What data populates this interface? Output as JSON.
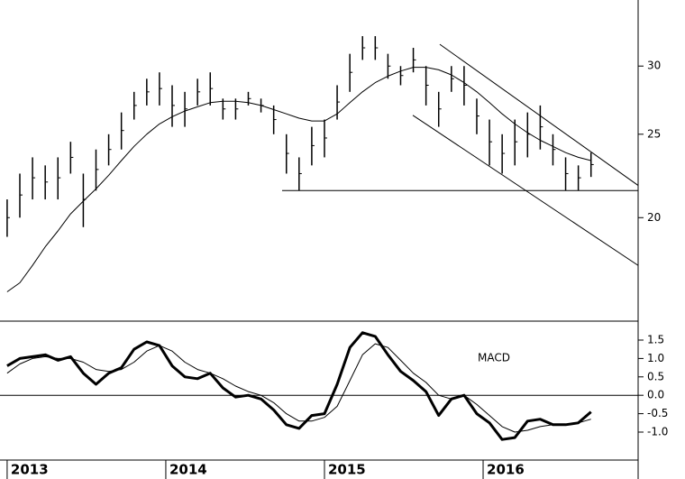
{
  "chart_data": [
    {
      "type": "hilo",
      "log_scale": true,
      "xlim": [
        2012.955,
        2016.977
      ],
      "ylim": [
        15.2,
        35.8
      ],
      "yticks": [
        20,
        25,
        30
      ],
      "x": [
        2013.0,
        2013.08,
        2013.16,
        2013.24,
        2013.32,
        2013.4,
        2013.48,
        2013.56,
        2013.64,
        2013.72,
        2013.8,
        2013.88,
        2013.96,
        2014.04,
        2014.12,
        2014.2,
        2014.28,
        2014.36,
        2014.44,
        2014.52,
        2014.6,
        2014.68,
        2014.76,
        2014.84,
        2014.92,
        2015.0,
        2015.08,
        2015.16,
        2015.24,
        2015.32,
        2015.4,
        2015.48,
        2015.56,
        2015.64,
        2015.72,
        2015.8,
        2015.88,
        2015.96,
        2016.04,
        2016.12,
        2016.2,
        2016.28,
        2016.36,
        2016.44,
        2016.52,
        2016.6,
        2016.68
      ],
      "high": [
        21,
        22.5,
        23.5,
        23,
        23.5,
        24.5,
        22.5,
        24,
        25,
        26.5,
        28,
        29,
        29.5,
        28.5,
        28,
        29,
        29.5,
        27.5,
        27.5,
        28,
        27.5,
        27,
        25,
        23.5,
        25.5,
        26,
        28.5,
        31,
        32.5,
        32.5,
        31,
        30,
        31.5,
        30,
        28,
        30,
        30,
        27.5,
        26,
        25,
        26,
        26.5,
        27,
        25,
        23.5,
        23,
        23.8
      ],
      "low": [
        19,
        20,
        21,
        21,
        21,
        22.5,
        19.5,
        21.5,
        23,
        24,
        26,
        27,
        27,
        25.5,
        25.5,
        27,
        27,
        26,
        26,
        27,
        26.5,
        25,
        22.5,
        21.5,
        23,
        23.5,
        26,
        28,
        30.5,
        30.5,
        29,
        28.5,
        29.5,
        27,
        25.5,
        28,
        27,
        25,
        23,
        22.5,
        23,
        23.5,
        24,
        23,
        21.5,
        21.5,
        22.3
      ],
      "color": "#000000",
      "moving_average": [
        16.4,
        16.8,
        17.6,
        18.5,
        19.3,
        20.2,
        20.9,
        21.6,
        22.4,
        23.3,
        24.2,
        25.0,
        25.7,
        26.2,
        26.6,
        26.9,
        27.2,
        27.3,
        27.3,
        27.2,
        27.0,
        26.7,
        26.4,
        26.1,
        25.9,
        25.9,
        26.4,
        27.2,
        28.0,
        28.7,
        29.2,
        29.6,
        29.9,
        29.9,
        29.7,
        29.3,
        28.7,
        28.0,
        27.2,
        26.4,
        25.7,
        25.1,
        24.6,
        24.2,
        23.8,
        23.5,
        23.3
      ],
      "lines": [
        {
          "x": [
            2015.727,
            2016.977
          ],
          "y": [
            31.8,
            21.8
          ]
        },
        {
          "x": [
            2015.557,
            2016.977
          ],
          "y": [
            26.3,
            17.6
          ]
        },
        {
          "x": [
            2014.733,
            2016.977
          ],
          "y": [
            21.5,
            21.5
          ]
        }
      ]
    },
    {
      "type": "line",
      "annotation": "MACD",
      "xlim": [
        2012.955,
        2016.977
      ],
      "xticks": [
        2013,
        2014,
        2015,
        2016
      ],
      "ylim": [
        -1.76,
        1.99
      ],
      "yticks": [
        {
          "value": 1.5,
          "label": "1.5"
        },
        {
          "value": 1,
          "label": "1.0"
        },
        {
          "value": 0.5,
          "label": "0.5"
        },
        {
          "value": 0,
          "label": "0.0"
        },
        {
          "value": -0.5,
          "label": "-0.5"
        },
        {
          "value": -1,
          "label": "-1.0"
        }
      ],
      "zero_line": true,
      "x": [
        2013.0,
        2013.08,
        2013.16,
        2013.24,
        2013.32,
        2013.4,
        2013.48,
        2013.56,
        2013.64,
        2013.72,
        2013.8,
        2013.88,
        2013.96,
        2014.04,
        2014.12,
        2014.2,
        2014.28,
        2014.36,
        2014.44,
        2014.52,
        2014.6,
        2014.68,
        2014.76,
        2014.84,
        2014.92,
        2015.0,
        2015.08,
        2015.16,
        2015.24,
        2015.32,
        2015.4,
        2015.48,
        2015.56,
        2015.64,
        2015.72,
        2015.8,
        2015.88,
        2015.96,
        2016.04,
        2016.12,
        2016.2,
        2016.28,
        2016.36,
        2016.44,
        2016.52,
        2016.6,
        2016.68
      ],
      "series": [
        {
          "color": "#000000",
          "line_width": 3,
          "values": [
            0.8,
            1.0,
            1.05,
            1.1,
            0.95,
            1.05,
            0.6,
            0.3,
            0.6,
            0.75,
            1.25,
            1.45,
            1.35,
            0.8,
            0.5,
            0.45,
            0.6,
            0.2,
            -0.05,
            0.0,
            -0.1,
            -0.4,
            -0.8,
            -0.9,
            -0.55,
            -0.5,
            0.3,
            1.3,
            1.7,
            1.6,
            1.1,
            0.65,
            0.4,
            0.1,
            -0.55,
            -0.1,
            0.0,
            -0.5,
            -0.75,
            -1.2,
            -1.15,
            -0.7,
            -0.65,
            -0.8,
            -0.8,
            -0.75,
            -0.45
          ]
        },
        {
          "color": "#000000",
          "line_width": 1,
          "values": [
            0.6,
            0.85,
            1.0,
            1.05,
            1.0,
            1.0,
            0.9,
            0.7,
            0.65,
            0.7,
            0.9,
            1.2,
            1.35,
            1.2,
            0.9,
            0.7,
            0.6,
            0.45,
            0.25,
            0.1,
            0.0,
            -0.2,
            -0.5,
            -0.7,
            -0.7,
            -0.6,
            -0.3,
            0.4,
            1.1,
            1.4,
            1.3,
            0.95,
            0.6,
            0.35,
            0.0,
            -0.1,
            0.0,
            -0.25,
            -0.55,
            -0.85,
            -1.0,
            -0.95,
            -0.85,
            -0.8,
            -0.8,
            -0.75,
            -0.65
          ]
        }
      ]
    }
  ]
}
